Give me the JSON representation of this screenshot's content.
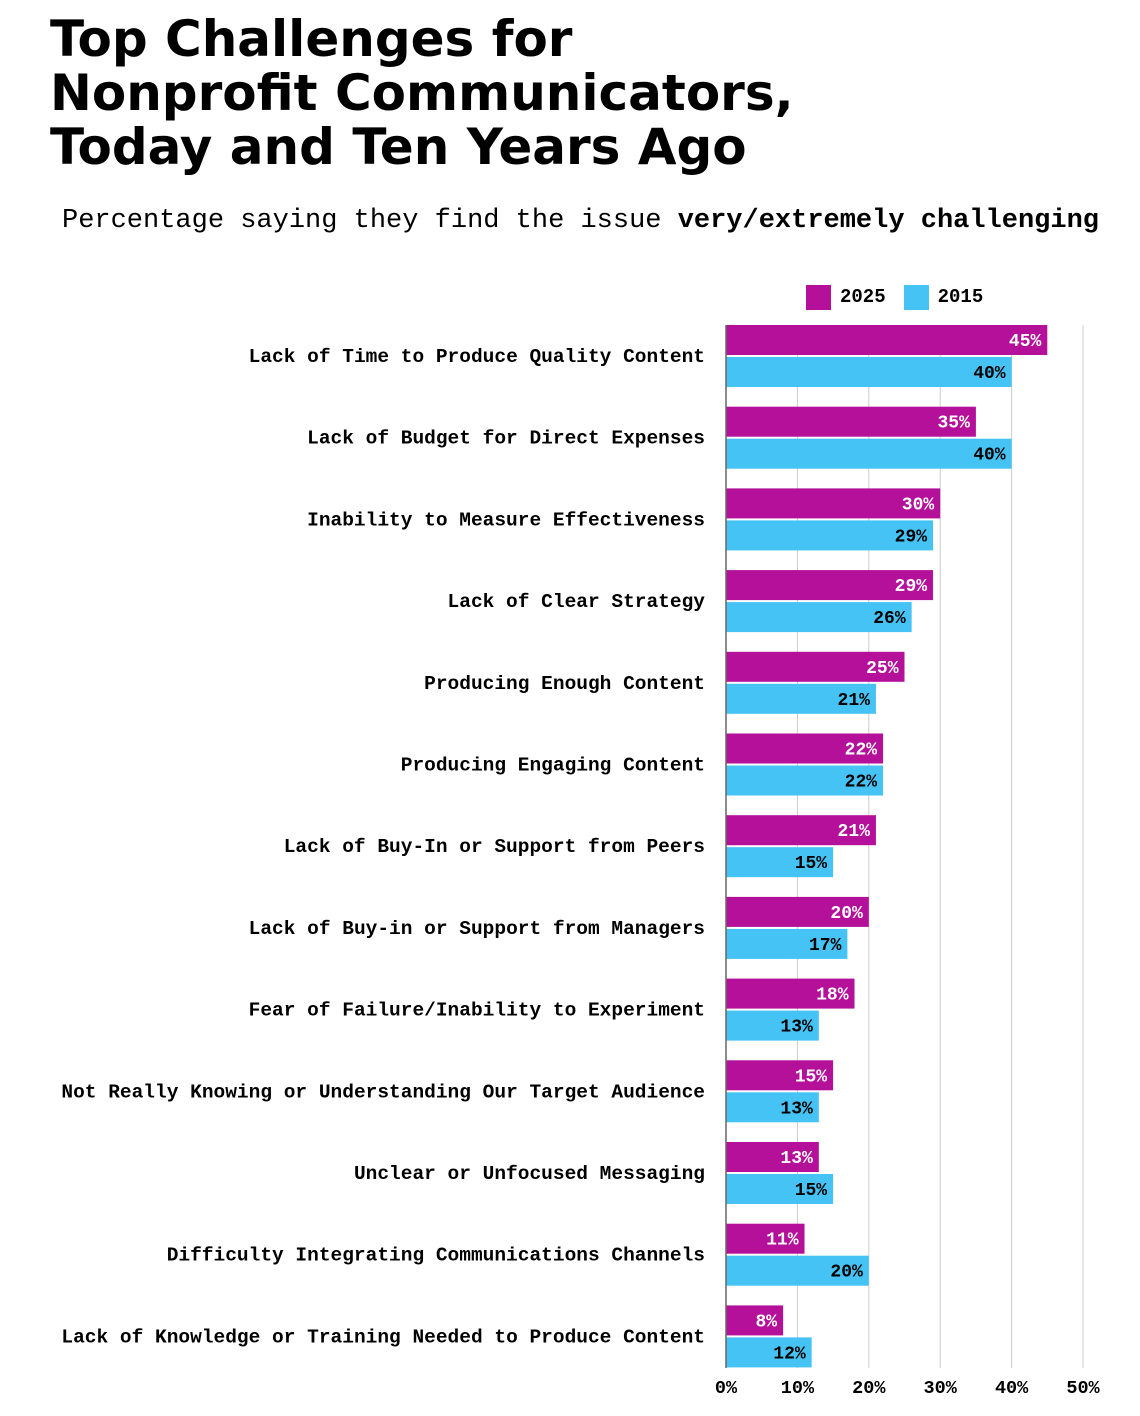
{
  "title_lines": [
    "Top Challenges for",
    "Nonprofit Communicators,",
    "Today and Ten Years Ago"
  ],
  "subtitle": {
    "prefix": "Percentage saying they find the issue ",
    "emphasis": "very/extremely challenging"
  },
  "colors": {
    "series_2025": "#B5109A",
    "series_2015": "#45C3F5",
    "grid": "#cccccc",
    "axis": "#666666"
  },
  "legend": [
    {
      "label": "2025",
      "color": "#B5109A"
    },
    {
      "label": "2015",
      "color": "#45C3F5"
    }
  ],
  "chart_data": {
    "type": "bar",
    "orientation": "horizontal",
    "title": "Top Challenges for Nonprofit Communicators, Today and Ten Years Ago",
    "subtitle": "Percentage saying they find the issue very/extremely challenging",
    "categories": [
      "Lack of Time to Produce Quality Content",
      "Lack of Budget for Direct Expenses",
      "Inability to Measure Effectiveness",
      "Lack of Clear Strategy",
      "Producing Enough Content",
      "Producing Engaging Content",
      "Lack of Buy-In or Support from Peers",
      "Lack of Buy-in or Support from Managers",
      "Fear of Failure/Inability to Experiment",
      "Not Really Knowing or Understanding Our Target Audience",
      "Unclear or Unfocused Messaging",
      "Difficulty Integrating Communications Channels",
      "Lack of Knowledge or Training Needed to Produce Content"
    ],
    "series": [
      {
        "name": "2025",
        "values": [
          45,
          35,
          30,
          29,
          25,
          22,
          21,
          20,
          18,
          15,
          13,
          11,
          8
        ]
      },
      {
        "name": "2015",
        "values": [
          40,
          40,
          29,
          26,
          21,
          22,
          15,
          17,
          13,
          13,
          15,
          20,
          12
        ]
      }
    ],
    "xlim": [
      0,
      50
    ],
    "xticks": [
      "0%",
      "10%",
      "20%",
      "30%",
      "40%",
      "50%"
    ],
    "value_suffix": "%",
    "grid": true,
    "legend_position": "top-right"
  }
}
